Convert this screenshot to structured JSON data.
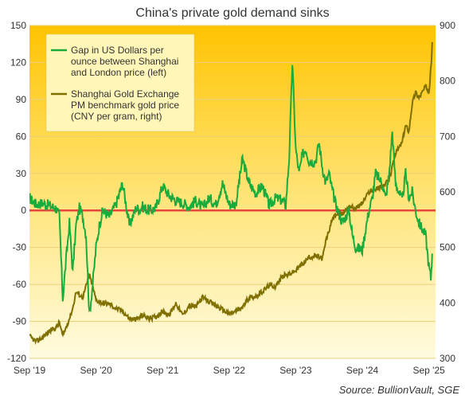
{
  "chart_data": {
    "type": "line",
    "title": "China's private gold demand sinks",
    "source": "Source:  BullionVault, SGE",
    "x_ticks": [
      "Sep '19",
      "Sep '20",
      "Sep '21",
      "Sep '22",
      "Sep '23",
      "Sep '24",
      "Sep '25"
    ],
    "y_left": {
      "min": -120,
      "max": 150,
      "ticks": [
        "150",
        "120",
        "90",
        "60",
        "30",
        "0",
        "-30",
        "-60",
        "-90",
        "-120"
      ]
    },
    "y_right": {
      "min": 300,
      "max": 900,
      "ticks": [
        "900",
        "800",
        "700",
        "600",
        "500",
        "400",
        "300"
      ]
    },
    "zero_line": 0,
    "colors": {
      "gap": "#1aab3d",
      "sge": "#7f7000",
      "zero": "#e8453c",
      "bg_top": "#ffc300",
      "bg_bottom": "#fffbe0",
      "legend_bg": "#fff6b8"
    },
    "legend": [
      {
        "label_lines": [
          "Gap in US Dollars per",
          "ounce between Shanghai",
          "and London price (left)"
        ]
      },
      {
        "label_lines": [
          "Shanghai Gold Exchange",
          "PM benchmark gold price",
          "(CNY per gram, right)"
        ]
      }
    ],
    "series": [
      {
        "axis": "left",
        "x": [
          2019.7,
          2019.8,
          2019.9,
          2020.0,
          2020.1,
          2020.15,
          2020.2,
          2020.25,
          2020.3,
          2020.35,
          2020.4,
          2020.45,
          2020.5,
          2020.55,
          2020.6,
          2020.65,
          2020.7,
          2020.75,
          2020.8,
          2020.9,
          2021.0,
          2021.1,
          2021.2,
          2021.25,
          2021.3,
          2021.35,
          2021.4,
          2021.5,
          2021.6,
          2021.7,
          2021.8,
          2021.9,
          2022.0,
          2022.1,
          2022.2,
          2022.3,
          2022.4,
          2022.5,
          2022.6,
          2022.7,
          2022.8,
          2022.9,
          2023.0,
          2023.1,
          2023.2,
          2023.3,
          2023.4,
          2023.5,
          2023.55,
          2023.6,
          2023.65,
          2023.7,
          2023.75,
          2023.8,
          2023.85,
          2023.9,
          2024.0,
          2024.05,
          2024.1,
          2024.15,
          2024.2,
          2024.25,
          2024.3,
          2024.4,
          2024.5,
          2024.55,
          2024.6,
          2024.7,
          2024.75,
          2024.8,
          2024.85,
          2024.9,
          2025.0,
          2025.05,
          2025.1,
          2025.15,
          2025.2,
          2025.3,
          2025.35,
          2025.4,
          2025.45,
          2025.5,
          2025.55,
          2025.6,
          2025.65,
          2025.7,
          2025.73,
          2025.75
        ],
        "y": [
          10,
          5,
          6,
          4,
          2,
          -5,
          -72,
          -40,
          -10,
          -50,
          -12,
          2,
          -5,
          -20,
          -85,
          -60,
          -30,
          -12,
          0,
          -5,
          5,
          22,
          -12,
          -5,
          2,
          1,
          3,
          0,
          2,
          20,
          12,
          8,
          6,
          3,
          8,
          2,
          10,
          5,
          22,
          5,
          5,
          42,
          22,
          14,
          20,
          4,
          10,
          8,
          4,
          42,
          120,
          50,
          30,
          45,
          50,
          40,
          40,
          55,
          35,
          22,
          30,
          16,
          5,
          -10,
          0,
          -20,
          -30,
          -32,
          -15,
          0,
          10,
          30,
          22,
          10,
          28,
          64,
          22,
          8,
          30,
          10,
          15,
          0,
          -10,
          -15,
          -20,
          -45,
          -55,
          -35
        ]
      },
      {
        "axis": "right",
        "x": [
          2019.7,
          2019.8,
          2019.9,
          2020.0,
          2020.1,
          2020.15,
          2020.2,
          2020.3,
          2020.35,
          2020.4,
          2020.5,
          2020.6,
          2020.65,
          2020.7,
          2020.8,
          2020.9,
          2021.0,
          2021.1,
          2021.2,
          2021.3,
          2021.4,
          2021.5,
          2021.6,
          2021.7,
          2021.8,
          2021.9,
          2022.0,
          2022.1,
          2022.2,
          2022.3,
          2022.4,
          2022.5,
          2022.6,
          2022.7,
          2022.8,
          2022.9,
          2023.0,
          2023.1,
          2023.2,
          2023.3,
          2023.4,
          2023.5,
          2023.6,
          2023.7,
          2023.8,
          2023.9,
          2024.0,
          2024.1,
          2024.15,
          2024.2,
          2024.25,
          2024.3,
          2024.4,
          2024.5,
          2024.6,
          2024.7,
          2024.8,
          2024.9,
          2025.0,
          2025.1,
          2025.15,
          2025.2,
          2025.3,
          2025.35,
          2025.4,
          2025.45,
          2025.5,
          2025.55,
          2025.6,
          2025.65,
          2025.7,
          2025.73,
          2025.75
        ],
        "y": [
          340,
          330,
          338,
          350,
          355,
          365,
          340,
          372,
          390,
          420,
          410,
          450,
          430,
          405,
          400,
          398,
          390,
          385,
          372,
          370,
          378,
          372,
          375,
          385,
          378,
          400,
          378,
          395,
          393,
          410,
          402,
          395,
          388,
          380,
          385,
          392,
          410,
          412,
          420,
          432,
          430,
          448,
          452,
          458,
          470,
          482,
          485,
          480,
          510,
          530,
          550,
          560,
          560,
          575,
          570,
          580,
          600,
          605,
          610,
          620,
          645,
          670,
          690,
          720,
          710,
          760,
          780,
          770,
          780,
          790,
          780,
          820,
          870
        ]
      }
    ]
  }
}
